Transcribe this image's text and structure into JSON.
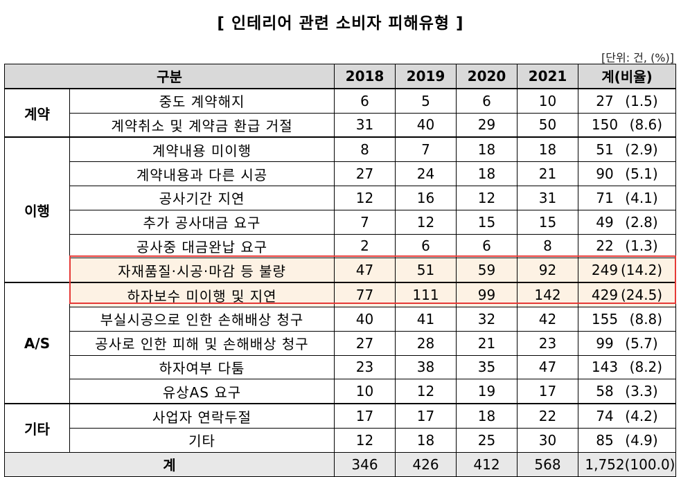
{
  "title": "[ 인테리어 관련 소비자 피해유형 ]",
  "unit_note": "[단위: 건, (%)]",
  "headers": {
    "category": "구분",
    "years": [
      "2018",
      "2019",
      "2020",
      "2021"
    ],
    "total": "계(비율)"
  },
  "groups": [
    {
      "name": "계약",
      "rows": [
        {
          "label": "중도 계약해지",
          "values": [
            "6",
            "5",
            "6",
            "10"
          ],
          "total": "27",
          "ratio": "(1.5)"
        },
        {
          "label": "계약취소 및  계약금 환급 거절",
          "values": [
            "31",
            "40",
            "29",
            "50"
          ],
          "total": "150",
          "ratio": "(8.6)"
        }
      ]
    },
    {
      "name": "이행",
      "rows": [
        {
          "label": "계약내용 미이행",
          "values": [
            "8",
            "7",
            "18",
            "18"
          ],
          "total": "51",
          "ratio": "(2.9)"
        },
        {
          "label": "계약내용과 다른 시공",
          "values": [
            "27",
            "24",
            "18",
            "21"
          ],
          "total": "90",
          "ratio": "(5.1)"
        },
        {
          "label": "공사기간 지연",
          "values": [
            "12",
            "16",
            "12",
            "31"
          ],
          "total": "71",
          "ratio": "(4.1)"
        },
        {
          "label": "추가 공사대금 요구",
          "values": [
            "7",
            "12",
            "15",
            "15"
          ],
          "total": "49",
          "ratio": "(2.8)"
        },
        {
          "label": "공사중 대금완납 요구",
          "values": [
            "2",
            "6",
            "6",
            "8"
          ],
          "total": "22",
          "ratio": "(1.3)"
        },
        {
          "label": "자재품질·시공·마감 등 불량",
          "values": [
            "47",
            "51",
            "59",
            "92"
          ],
          "total": "249",
          "ratio": "(14.2)"
        }
      ]
    },
    {
      "name": "A/S",
      "rows": [
        {
          "label": "하자보수 미이행 및 지연",
          "values": [
            "77",
            "111",
            "99",
            "142"
          ],
          "total": "429",
          "ratio": "(24.5)"
        },
        {
          "label": "부실시공으로 인한 손해배상 청구",
          "values": [
            "40",
            "41",
            "32",
            "42"
          ],
          "total": "155",
          "ratio": "(8.8)"
        },
        {
          "label": "공사로 인한 피해 및 손해배상 청구",
          "values": [
            "27",
            "28",
            "21",
            "23"
          ],
          "total": "99",
          "ratio": "(5.7)"
        },
        {
          "label": "하자여부 다툼",
          "values": [
            "23",
            "38",
            "35",
            "47"
          ],
          "total": "143",
          "ratio": "(8.2)"
        },
        {
          "label": "유상AS 요구",
          "values": [
            "10",
            "12",
            "19",
            "17"
          ],
          "total": "58",
          "ratio": "(3.3)"
        }
      ]
    },
    {
      "name": "기타",
      "rows": [
        {
          "label": "사업자 연락두절",
          "values": [
            "17",
            "17",
            "18",
            "22"
          ],
          "total": "74",
          "ratio": "(4.2)"
        },
        {
          "label": "기타",
          "values": [
            "12",
            "18",
            "25",
            "30"
          ],
          "total": "85",
          "ratio": "(4.9)"
        }
      ]
    }
  ],
  "sum_row": {
    "label": "계",
    "values": [
      "346",
      "426",
      "412",
      "568"
    ],
    "total": "1,752",
    "ratio": "(100.0)"
  },
  "highlight": {
    "rows": [
      "자재품질·시공·마감 등 불량",
      "하자보수 미이행 및 지연"
    ],
    "border_color": "#e53935",
    "fill_color": "#fdf2e4"
  }
}
